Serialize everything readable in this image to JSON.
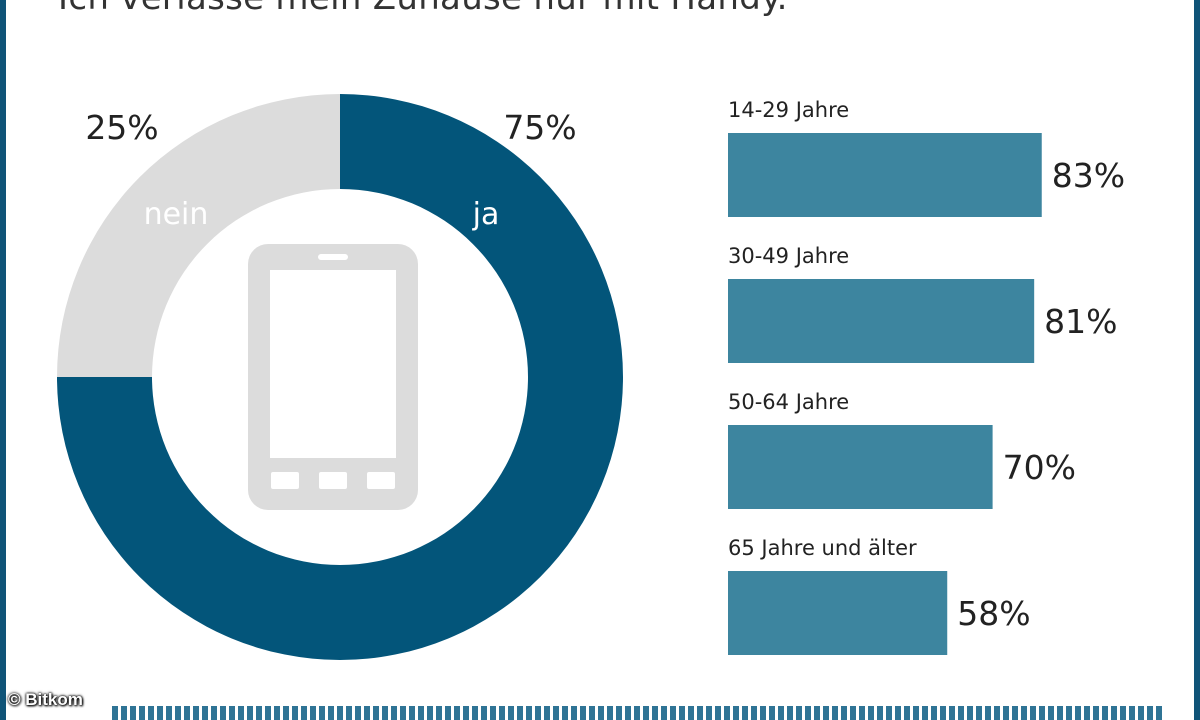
{
  "header": {
    "sentence": "Ich verlasse mein Zuhause nur mit Handy."
  },
  "colors": {
    "ja": "#03557a",
    "nein": "#dcdcdc",
    "bar": "#3d859f",
    "phone_icon": "#dcdcdc",
    "stripe": "#2f7495"
  },
  "chart_data": [
    {
      "type": "pie",
      "labels": [
        "ja",
        "nein"
      ],
      "values": [
        75,
        25
      ],
      "value_labels": [
        "75%",
        "25%"
      ]
    },
    {
      "type": "bar",
      "orientation": "horizontal",
      "categories": [
        "14-29 Jahre",
        "30-49 Jahre",
        "50-64 Jahre",
        "65 Jahre und älter"
      ],
      "values": [
        83,
        81,
        70,
        58
      ],
      "value_labels": [
        "83%",
        "81%",
        "70%",
        "58%"
      ]
    }
  ],
  "center_icon": "smartphone-icon",
  "credit": "© Bitkom"
}
